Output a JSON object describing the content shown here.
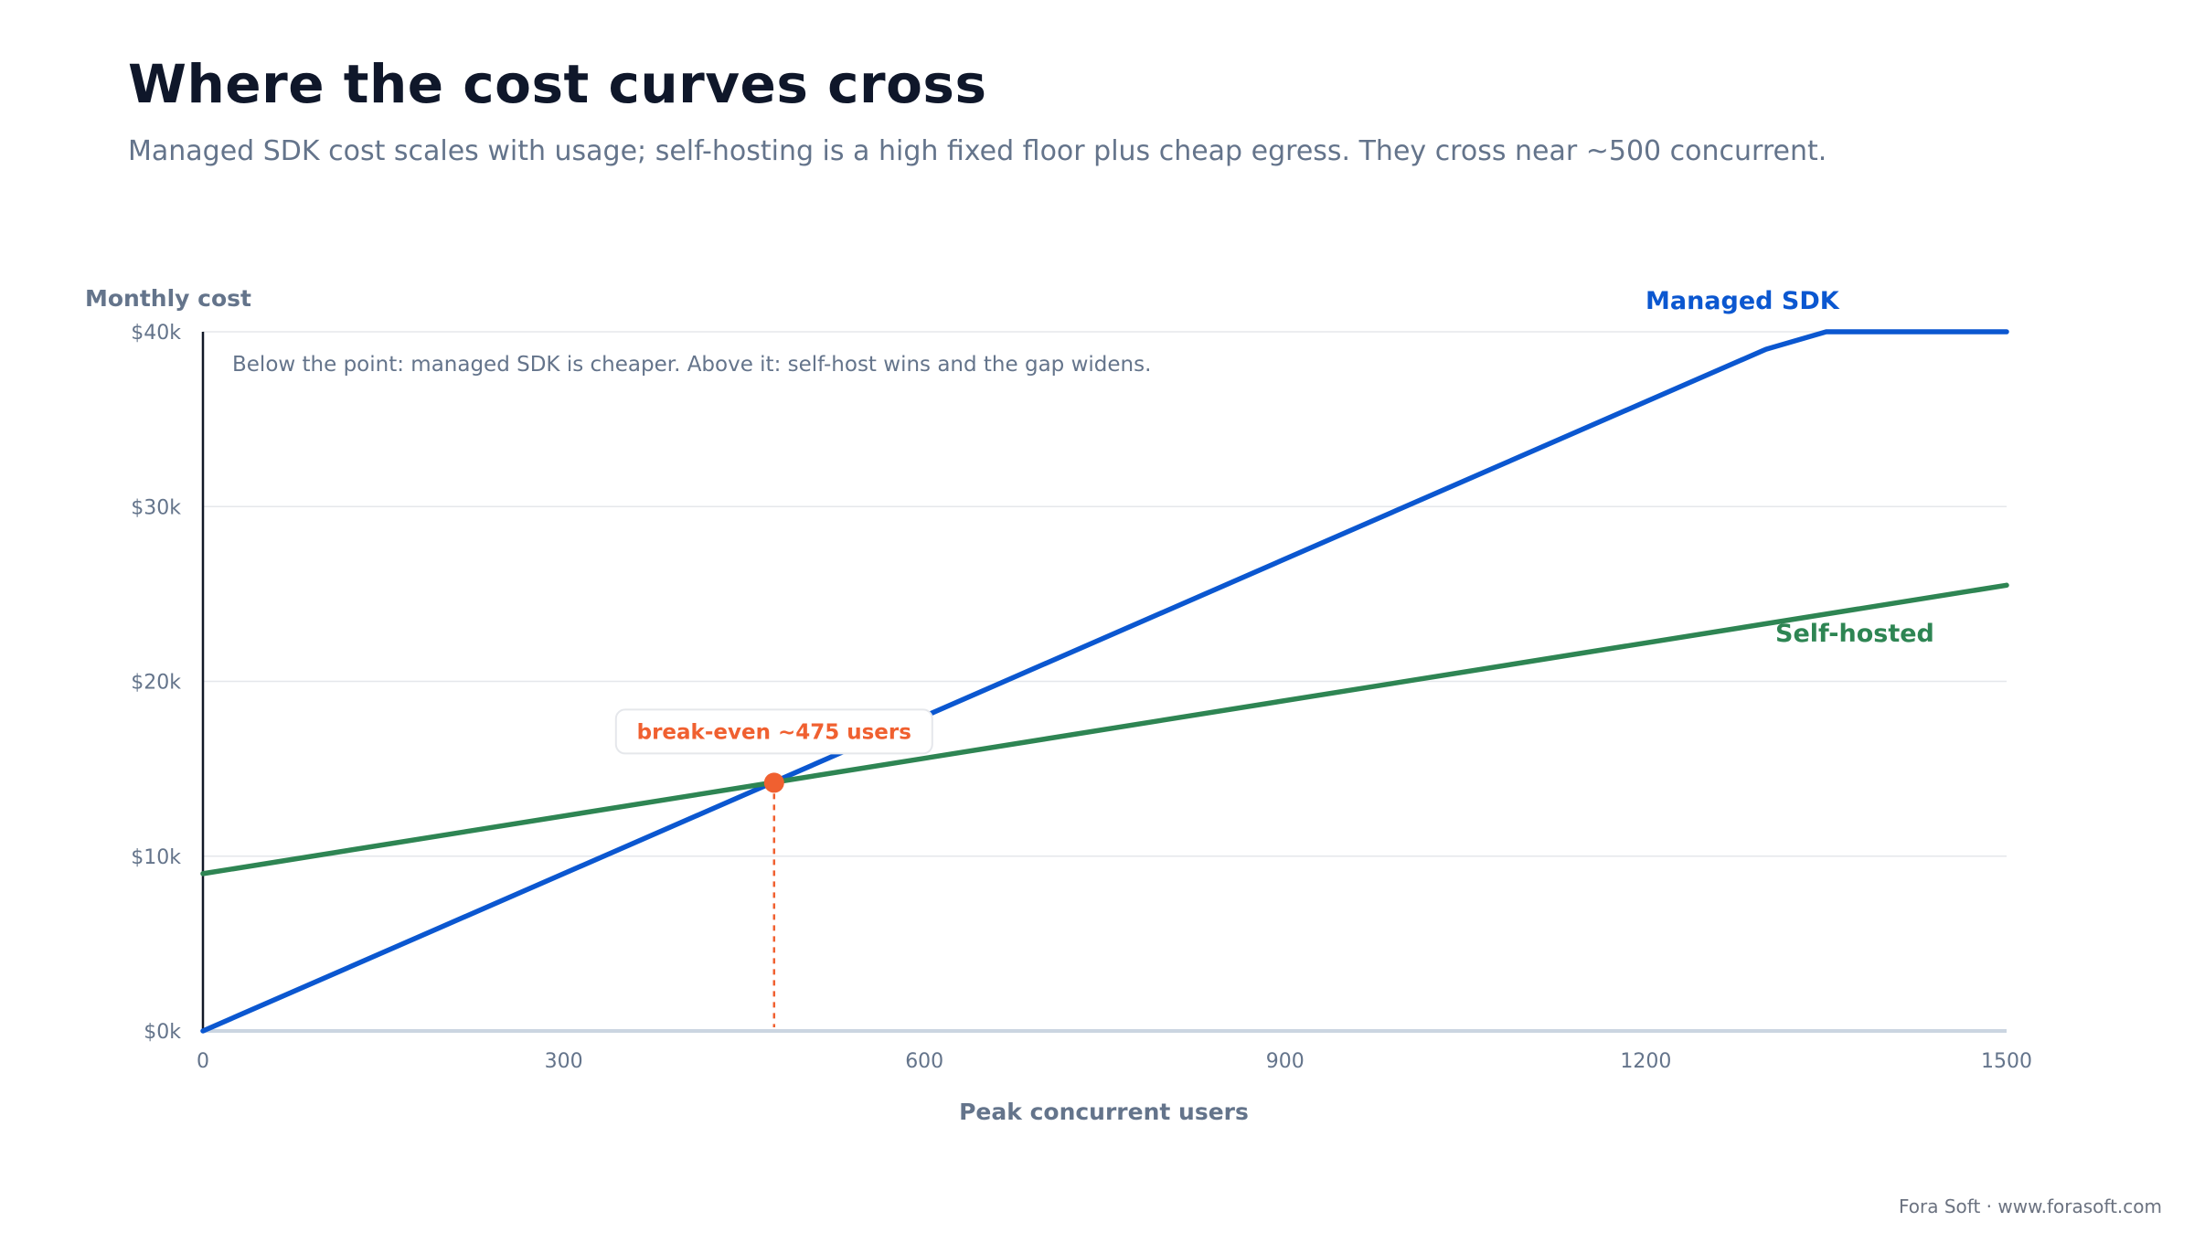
{
  "header": {
    "title": "Where the cost curves cross",
    "subtitle": "Managed SDK cost scales with usage; self-hosting is a high fixed floor plus cheap egress. They cross near ~500 concurrent."
  },
  "footer": {
    "credit": "Fora Soft · www.forasoft.com"
  },
  "chart_data": {
    "type": "line",
    "ylabel": "Monthly cost",
    "xlabel": "Peak concurrent users",
    "xlim": [
      0,
      1500
    ],
    "ylim": [
      0,
      40000
    ],
    "x_ticks": [
      0,
      300,
      600,
      900,
      1200,
      1500
    ],
    "x_tick_labels": [
      "0",
      "300",
      "600",
      "900",
      "1200",
      "1500"
    ],
    "y_ticks": [
      0,
      10000,
      20000,
      30000,
      40000
    ],
    "y_tick_labels": [
      "$0k",
      "$10k",
      "$20k",
      "$30k",
      "$40k"
    ],
    "grid": "horizontal",
    "annotation": "Below the point: managed SDK is cheaper. Above it: self-host wins and the gap widens.",
    "series": [
      {
        "name": "Managed SDK",
        "color": "#0b57d0",
        "x": [
          0,
          1300,
          1350,
          1500
        ],
        "y": [
          0,
          39000,
          40000,
          40000
        ]
      },
      {
        "name": "Self-hosted",
        "color": "#2e8553",
        "x": [
          0,
          1500
        ],
        "y": [
          9000,
          25500
        ]
      }
    ],
    "break_even": {
      "x": 475,
      "y": 14200,
      "label": "break-even ~475 users",
      "color": "#f06030"
    }
  }
}
